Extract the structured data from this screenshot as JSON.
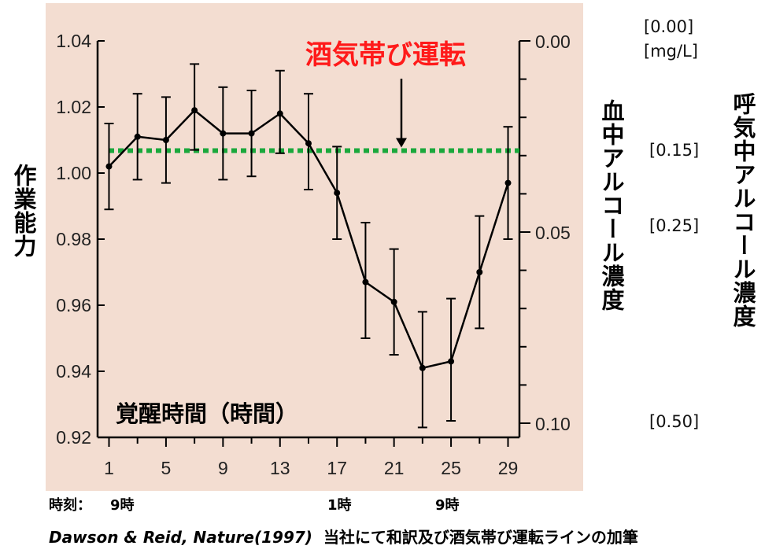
{
  "chart_data": {
    "type": "line",
    "x": [
      1,
      3,
      5,
      7,
      9,
      11,
      13,
      15,
      17,
      19,
      21,
      23,
      25,
      27,
      29
    ],
    "y": [
      1.002,
      1.011,
      1.01,
      1.019,
      1.012,
      1.012,
      1.018,
      1.009,
      0.994,
      0.967,
      0.961,
      0.941,
      0.943,
      0.97,
      0.997
    ],
    "err_lo": [
      0.989,
      0.998,
      0.997,
      1.007,
      0.998,
      0.999,
      1.006,
      0.995,
      0.98,
      0.95,
      0.945,
      0.923,
      0.925,
      0.953,
      0.98
    ],
    "err_hi": [
      1.015,
      1.024,
      1.023,
      1.033,
      1.026,
      1.025,
      1.031,
      1.024,
      1.008,
      0.985,
      0.977,
      0.958,
      0.962,
      0.987,
      1.014
    ],
    "x_ticks": [
      1,
      5,
      9,
      13,
      17,
      21,
      25,
      29
    ],
    "x_tick_labels": [
      "1",
      "5",
      "9",
      "13",
      "17",
      "21",
      "25",
      "29"
    ],
    "xlim": [
      0.2,
      29.8
    ],
    "ylim": [
      0.92,
      1.04
    ],
    "y_ticks": [
      0.92,
      0.94,
      0.96,
      0.98,
      1.0,
      1.02,
      1.04
    ],
    "y_tick_labels": [
      "0.92",
      "0.94",
      "0.96",
      "0.98",
      "1.00",
      "1.02",
      "1.04"
    ],
    "xlabel": "覚醒時間（時間）",
    "ylabel": "作業能力",
    "y2label": "血中アルコール濃度",
    "y2lim": [
      0.0,
      0.1
    ],
    "y2_ticks": [
      0.0,
      0.05,
      0.1
    ],
    "y2_tick_labels": [
      "0.00",
      "0.05",
      "0.10"
    ],
    "y2_minor_step": 0.01,
    "y3label": "呼気中アルコール濃度",
    "y3_labels": [
      {
        "text": "[0.00]",
        "y2": 0.0
      },
      {
        "text": "[mg/L]",
        "y2": 0.0
      },
      {
        "text": "[0.15]",
        "y2": 0.03
      },
      {
        "text": "[0.25]",
        "y2": 0.05
      },
      {
        "text": "[0.50]",
        "y2": 0.1
      }
    ],
    "reference_line": {
      "label": "酒気帯び運転",
      "y": 1.0068,
      "color": "#1aa83c",
      "label_color": "#ff1a1a"
    },
    "grid": false,
    "colors": {
      "plot_background": "#f3ddd1",
      "line": "#000000",
      "text": "#000000"
    }
  },
  "time_labels": {
    "prefix": "時刻：",
    "items": [
      {
        "text": "9時",
        "x": 1
      },
      {
        "text": "1時",
        "x": 17
      },
      {
        "text": "9時",
        "x": 25
      }
    ]
  },
  "source_note": {
    "citation": "Dawson & Reid, Nature(1997)",
    "note": "当社にて和訳及び酒気帯び運転ラインの加筆"
  }
}
